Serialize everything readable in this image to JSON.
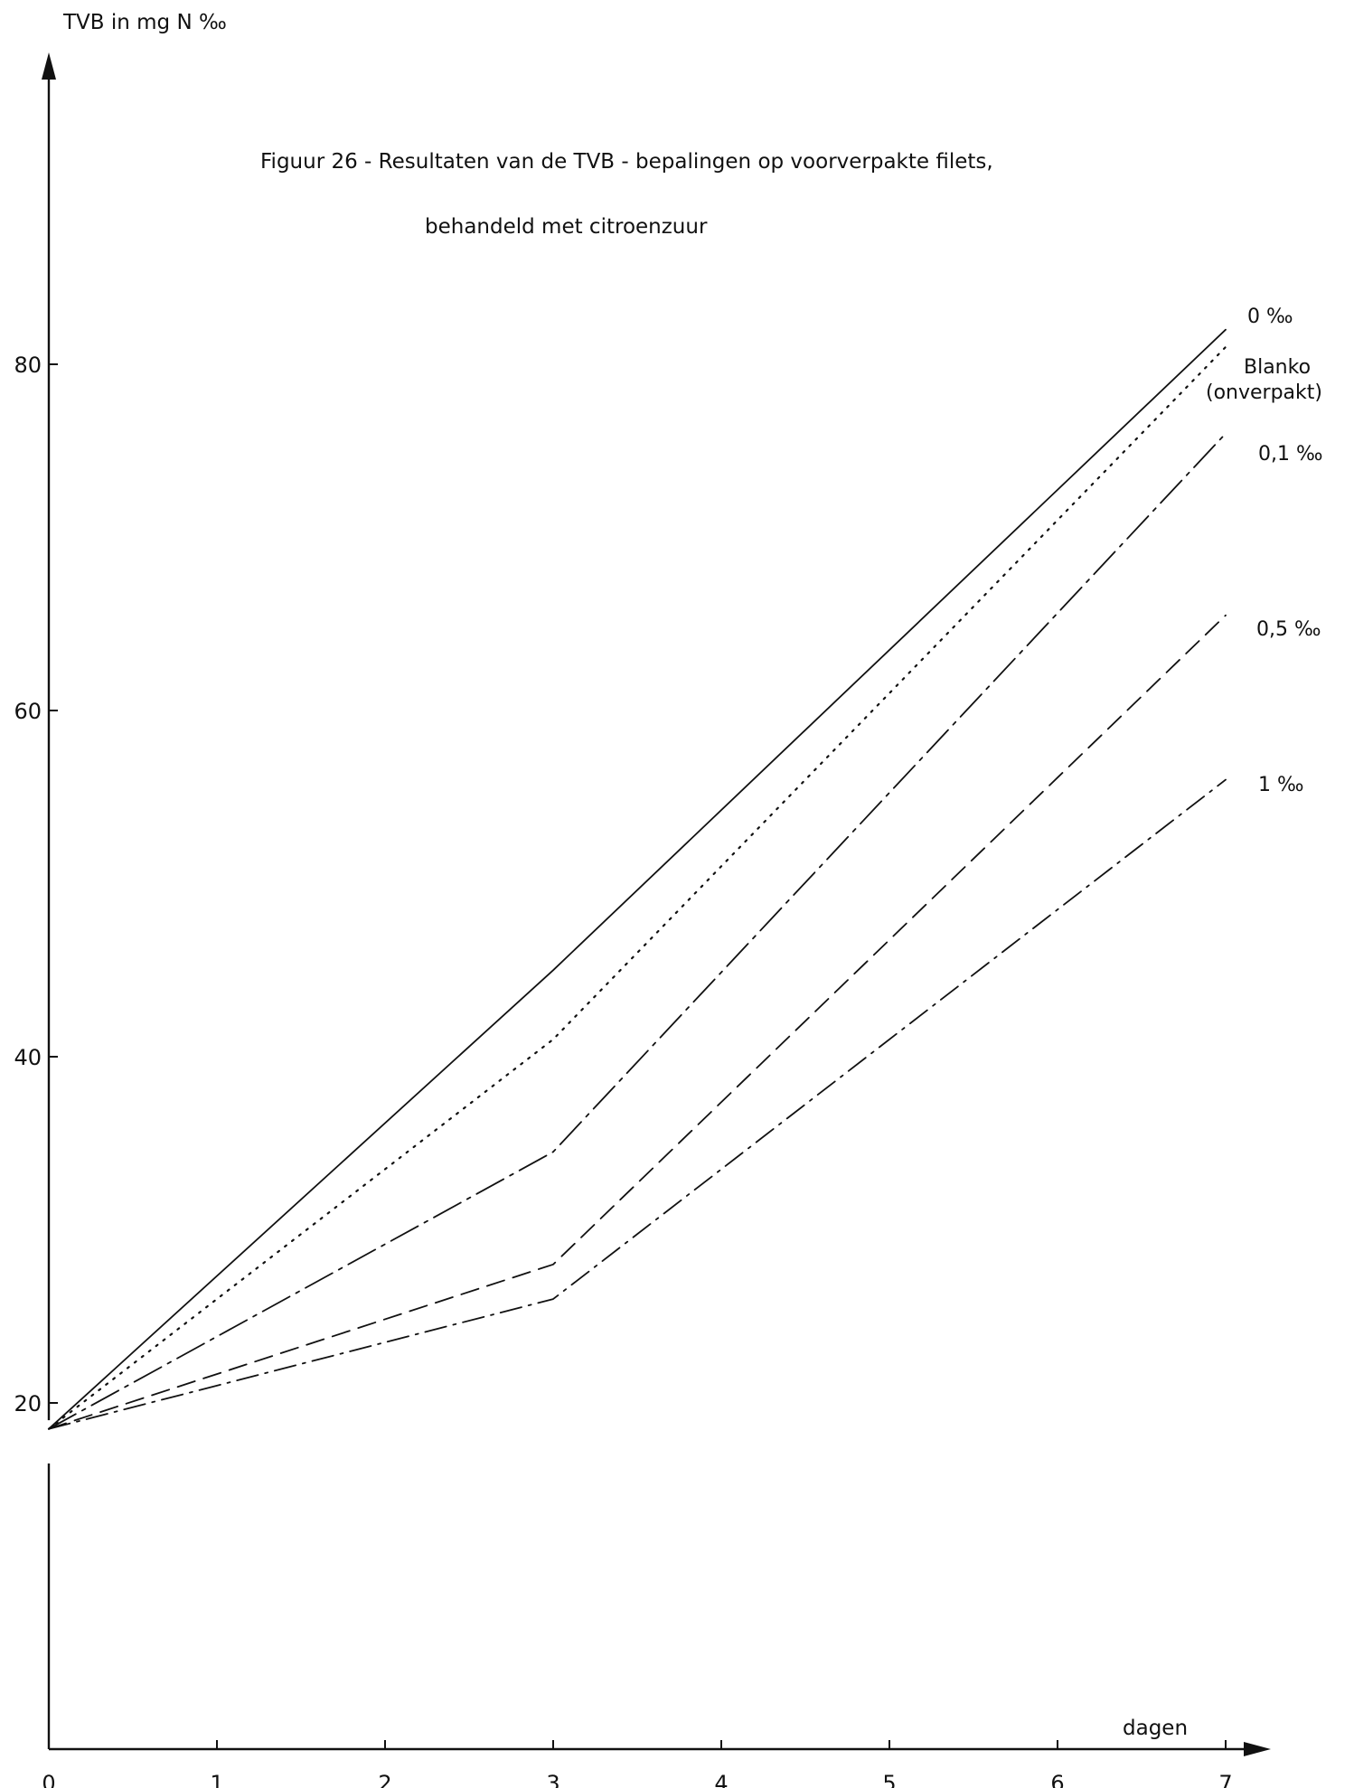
{
  "chart_data": {
    "type": "line",
    "title": "Figuur 26 - Resultaten van de  TVB - bepalingen op voorverpakte filets,",
    "subtitle": "behandeld  met citroenzuur",
    "ylabel": "TVB  in mg  N ‰",
    "xlabel": "dagen",
    "x": [
      0,
      3,
      7
    ],
    "x_ticks": [
      0,
      1,
      2,
      3,
      4,
      5,
      6,
      7
    ],
    "y_ticks": [
      20,
      40,
      60,
      80
    ],
    "xlim": [
      0,
      7
    ],
    "ylim": [
      0,
      100
    ],
    "y_axis_break": [
      16.5,
      19
    ],
    "grid": false,
    "series": [
      {
        "name": "0 ‰",
        "dash": "solid",
        "values": [
          18.5,
          45,
          82
        ]
      },
      {
        "name": "Blanko (onverpakt)",
        "dash": "dotted",
        "values": [
          18.5,
          41,
          81
        ]
      },
      {
        "name": "0,1 ‰",
        "dash": "dash-dot-long",
        "values": [
          18.5,
          34.5,
          76
        ]
      },
      {
        "name": "0,5 ‰",
        "dash": "dashed",
        "values": [
          18.5,
          28,
          65.5
        ]
      },
      {
        "name": "1 ‰",
        "dash": "dash-dot",
        "values": [
          18.5,
          26,
          56
        ]
      }
    ],
    "series_label_lines": [
      [
        "0 ‰"
      ],
      [
        "Blanko",
        "(onverpakt)"
      ],
      [
        "0,1 ‰"
      ],
      [
        "0,5 ‰"
      ],
      [
        "1 ‰"
      ]
    ]
  }
}
